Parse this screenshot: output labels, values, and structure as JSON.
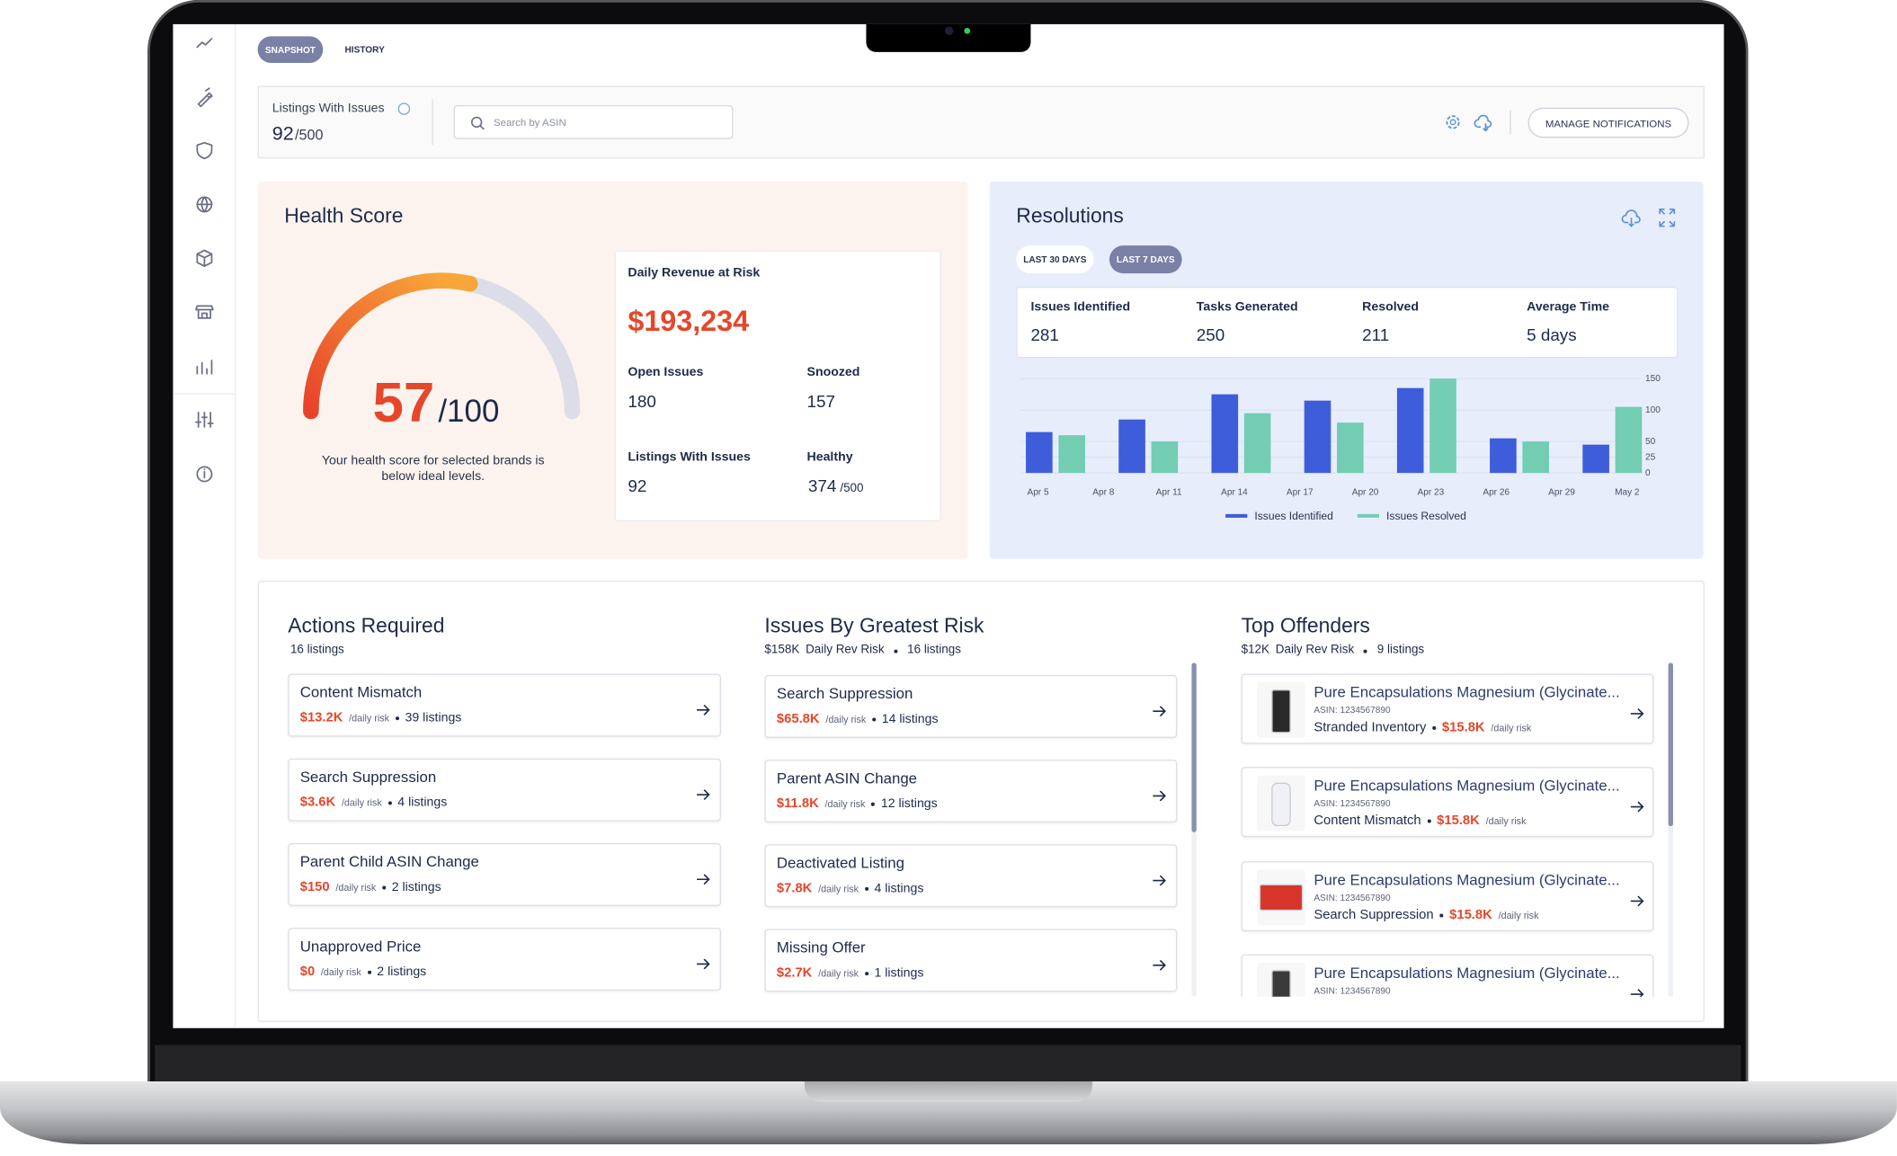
{
  "nav_tabs": [
    "SNAPSHOT",
    "HISTORY"
  ],
  "header": {
    "label": "Listings With Issues",
    "count": "92",
    "total": "/500",
    "search_placeholder": "Search by ASIN",
    "button": "MANAGE NOTIFICATIONS"
  },
  "health": {
    "title": "Health Score",
    "score": 57,
    "max": {
      "value": 100,
      "label": "/100"
    },
    "note": "Your health score for selected brands is below ideal levels."
  },
  "revenue": {
    "title": "Daily Revenue at Risk",
    "amount": "$193,234",
    "stats": [
      {
        "label": "Open Issues",
        "value": "180"
      },
      {
        "label": "Snoozed",
        "value": "157"
      },
      {
        "label": "Listings With Issues",
        "value": "92"
      },
      {
        "label": "Healthy",
        "value": "374",
        "total": "/500"
      }
    ]
  },
  "resolutions": {
    "title": "Resolutions",
    "ranges": [
      "LAST 30 DAYS",
      "LAST 7 DAYS"
    ],
    "stats": [
      {
        "label": "Issues Identified",
        "value": "281"
      },
      {
        "label": "Tasks Generated",
        "value": "250"
      },
      {
        "label": "Resolved",
        "value": "211"
      },
      {
        "label": "Average Time",
        "value": "5 days"
      }
    ]
  },
  "chart_data": {
    "type": "bar",
    "categories": [
      null,
      null,
      null,
      null,
      null,
      null,
      null
    ],
    "x_labels": [
      "Apr 5",
      "Apr 8",
      "Apr 11",
      "Apr 14",
      "Apr 17",
      "Apr 20",
      "Apr 23",
      "Apr 26",
      "Apr 29",
      "May 2"
    ],
    "series": [
      {
        "name": "Issues Identified",
        "color": "#3e5ddb",
        "values": [
          65,
          85,
          125,
          115,
          135,
          55,
          45
        ]
      },
      {
        "name": "Issues Resolved",
        "color": "#72cdb3",
        "values": [
          60,
          50,
          95,
          80,
          150,
          50,
          105
        ]
      }
    ],
    "ylim": [
      0,
      150
    ],
    "yticks": [
      0,
      25,
      50,
      100,
      150
    ],
    "grid": true,
    "legend": "bottom"
  },
  "actions": {
    "title": "Actions Required",
    "subtitle": "16 listings",
    "items": [
      {
        "title": "Content Mismatch",
        "amount": "$13.2K",
        "unit": "/daily risk",
        "count": "39 listings"
      },
      {
        "title": "Search Suppression",
        "amount": "$3.6K",
        "unit": "/daily risk",
        "count": "4 listings"
      },
      {
        "title": "Parent Child ASIN Change",
        "amount": "$150",
        "unit": "/daily risk",
        "count": "2 listings"
      },
      {
        "title": "Unapproved Price",
        "amount": "$0",
        "unit": "/daily risk",
        "count": "2 listings"
      }
    ]
  },
  "issues": {
    "title": "Issues By Greatest Risk",
    "subtitle": {
      "amount": "$158K",
      "unit": "Daily Rev Risk",
      "count": "16 listings"
    },
    "items": [
      {
        "title": "Search Suppression",
        "amount": "$65.8K",
        "unit": "/daily risk",
        "count": "14 listings"
      },
      {
        "title": "Parent ASIN Change",
        "amount": "$11.8K",
        "unit": "/daily risk",
        "count": "12 listings"
      },
      {
        "title": "Deactivated Listing",
        "amount": "$7.8K",
        "unit": "/daily risk",
        "count": "4 listings"
      },
      {
        "title": "Missing Offer",
        "amount": "$2.7K",
        "unit": "/daily risk",
        "count": "1 listings"
      }
    ]
  },
  "offenders": {
    "title": "Top Offenders",
    "subtitle": {
      "amount": "$12K",
      "unit": "Daily Rev Risk",
      "count": "9 listings"
    },
    "items": [
      {
        "name": "Pure Encapsulations Magnesium (Glycinate...",
        "asin": "ASIN: 1234567890",
        "reason": "Stranded Inventory",
        "amount": "$15.8K",
        "unit": "/daily risk"
      },
      {
        "name": "Pure Encapsulations Magnesium (Glycinate...",
        "asin": "ASIN: 1234567890",
        "reason": "Content Mismatch",
        "amount": "$15.8K",
        "unit": "/daily risk"
      },
      {
        "name": "Pure Encapsulations Magnesium (Glycinate...",
        "asin": "ASIN: 1234567890",
        "reason": "Search Suppression",
        "amount": "$15.8K",
        "unit": "/daily risk"
      },
      {
        "name": "Pure Encapsulations Magnesium (Glycinate...",
        "asin": "ASIN: 1234567890"
      }
    ]
  }
}
